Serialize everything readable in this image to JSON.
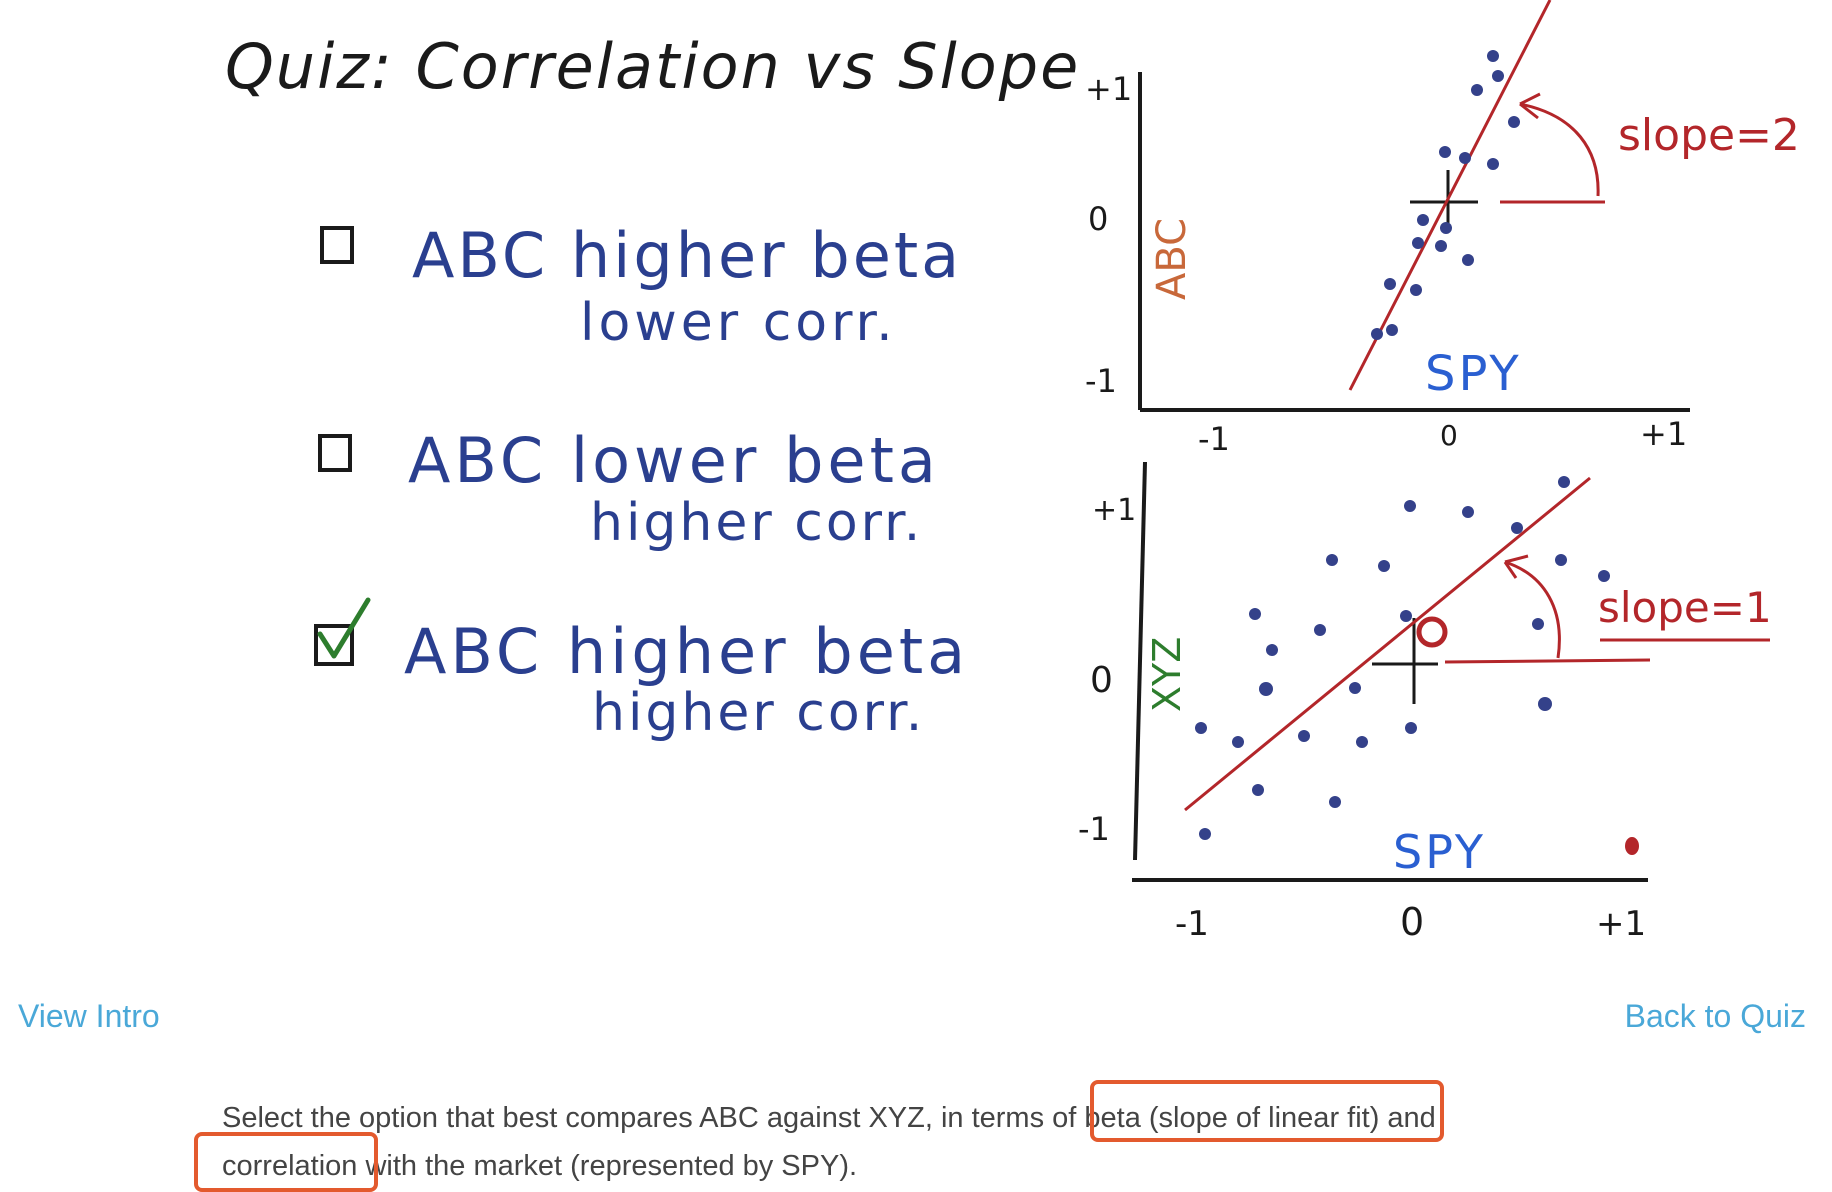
{
  "quiz": {
    "title": "Quiz: Correlation vs Slope",
    "options": [
      {
        "line1": "ABC higher beta",
        "line2": "lower corr.",
        "checked": false
      },
      {
        "line1": "ABC lower beta",
        "line2": "higher corr.",
        "checked": false
      },
      {
        "line1": "ABC higher beta",
        "line2": "higher corr.",
        "checked": true
      }
    ]
  },
  "plots": {
    "top": {
      "ylabel": "ABC",
      "xlabel": "SPY",
      "slope_label": "slope=2",
      "y_ticks": [
        "+1",
        "0",
        "-1"
      ],
      "x_ticks": [
        "-1",
        "0",
        "+1"
      ]
    },
    "bottom": {
      "ylabel": "XYZ",
      "xlabel": "SPY",
      "slope_label": "slope=1",
      "y_ticks": [
        "+1",
        "0",
        "-1"
      ],
      "x_ticks": [
        "-1",
        "0",
        "+1"
      ]
    }
  },
  "nav": {
    "view_intro": "View Intro",
    "back_to_quiz": "Back to Quiz"
  },
  "instructions": {
    "part1": "Select the option that best compares ABC against XYZ, in terms of beta (slope of linear fit) and",
    "part2": "correlation with the market (represented by SPY)."
  },
  "colors": {
    "ink_dark": "#1a1a1a",
    "ink_blue": "#2a3f8f",
    "ink_red": "#b3262a",
    "ink_green": "#2d7d2d",
    "ink_orange": "#c8683a",
    "dot": "#34418a",
    "link": "#4aa8d8",
    "highlight": "#e35a2e"
  }
}
